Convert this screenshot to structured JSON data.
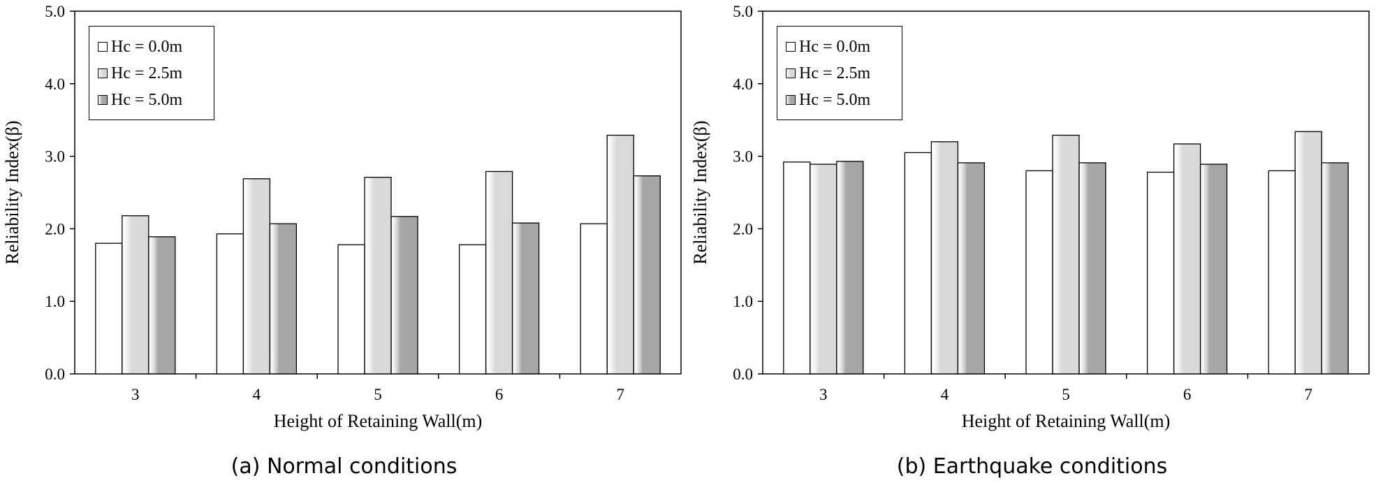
{
  "chart_data": [
    {
      "type": "bar",
      "caption": "(a) Normal conditions",
      "xlabel": "Height of Retaining Wall(m)",
      "ylabel": "Reliability Index(β)",
      "ylim": [
        0,
        5
      ],
      "yticks": [
        "0.0",
        "1.0",
        "2.0",
        "3.0",
        "4.0",
        "5.0"
      ],
      "categories": [
        "3",
        "4",
        "5",
        "6",
        "7"
      ],
      "legend_position": "top-left",
      "series": [
        {
          "name": "Hc = 0.0m",
          "color": "#ffffff",
          "values": [
            1.8,
            1.93,
            1.78,
            1.78,
            2.07
          ]
        },
        {
          "name": "Hc = 2.5m",
          "color": "#d9d9d9",
          "values": [
            2.18,
            2.69,
            2.71,
            2.79,
            3.29
          ]
        },
        {
          "name": "Hc = 5.0m",
          "color": "#a6a6a6",
          "values": [
            1.89,
            2.07,
            2.17,
            2.08,
            2.73
          ]
        }
      ]
    },
    {
      "type": "bar",
      "caption": "(b) Earthquake conditions",
      "xlabel": "Height of Retaining Wall(m)",
      "ylabel": "Reliability Index(β)",
      "ylim": [
        0,
        5
      ],
      "yticks": [
        "0.0",
        "1.0",
        "2.0",
        "3.0",
        "4.0",
        "5.0"
      ],
      "categories": [
        "3",
        "4",
        "5",
        "6",
        "7"
      ],
      "legend_position": "top-left",
      "series": [
        {
          "name": "Hc = 0.0m",
          "color": "#ffffff",
          "values": [
            2.92,
            3.05,
            2.8,
            2.78,
            2.8
          ]
        },
        {
          "name": "Hc = 2.5m",
          "color": "#d9d9d9",
          "values": [
            2.89,
            3.2,
            3.29,
            3.17,
            3.34
          ]
        },
        {
          "name": "Hc = 5.0m",
          "color": "#a6a6a6",
          "values": [
            2.93,
            2.91,
            2.91,
            2.89,
            2.91
          ]
        }
      ]
    }
  ]
}
